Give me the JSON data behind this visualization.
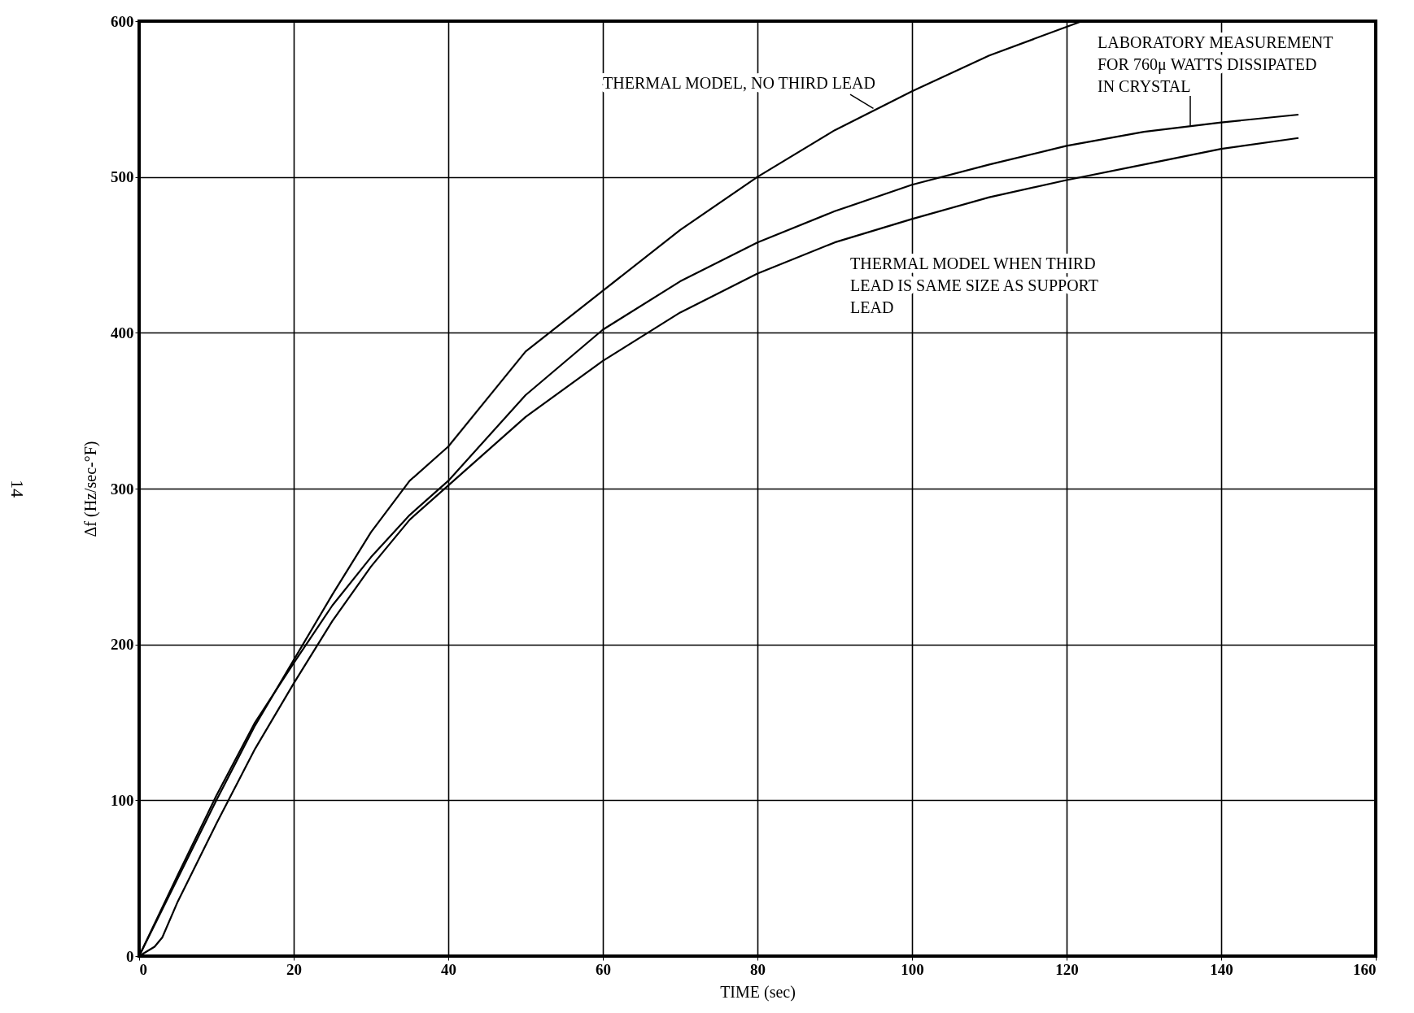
{
  "chart_data": {
    "type": "line",
    "xlabel": "TIME (sec)",
    "ylabel": "Δf (Hz/sec-°F)",
    "xlim": [
      0,
      160
    ],
    "xticks": [
      0,
      20,
      40,
      60,
      80,
      100,
      120,
      140,
      160
    ],
    "ylim": [
      0,
      600
    ],
    "yticks": [
      0,
      100,
      200,
      300,
      400,
      500,
      600
    ],
    "grid": true,
    "legend": false,
    "marker": "none",
    "line_style": "solid",
    "series": [
      {
        "name": "THERMAL MODEL, NO THIRD LEAD",
        "color": "#000000",
        "x": [
          0,
          5,
          10,
          15,
          20,
          25,
          30,
          35,
          40,
          50,
          60,
          70,
          80,
          90,
          100,
          110,
          122
        ],
        "values": [
          0,
          50,
          100,
          148,
          190,
          232,
          272,
          305,
          327,
          388,
          427,
          466,
          500,
          530,
          555,
          578,
          600
        ]
      },
      {
        "name": "LABORATORY MEASUREMENT\nFOR 760μ WATTS DISSIPATED\nIN CRYSTAL",
        "color": "#000000",
        "x": [
          0,
          5,
          10,
          15,
          20,
          25,
          30,
          35,
          40,
          50,
          60,
          70,
          80,
          90,
          100,
          110,
          120,
          130,
          140,
          150
        ],
        "values": [
          0,
          52,
          103,
          150,
          188,
          225,
          256,
          283,
          305,
          360,
          402,
          433,
          458,
          478,
          495,
          508,
          520,
          529,
          535,
          540
        ]
      },
      {
        "name": "THERMAL MODEL WHEN THIRD\nLEAD IS SAME SIZE AS SUPPORT\nLEAD",
        "color": "#000000",
        "x": [
          0,
          1,
          2,
          3,
          5,
          10,
          15,
          20,
          25,
          30,
          35,
          40,
          50,
          60,
          70,
          80,
          90,
          100,
          110,
          120,
          130,
          140,
          150
        ],
        "values": [
          0,
          3,
          6,
          12,
          35,
          85,
          133,
          175,
          215,
          250,
          280,
          302,
          346,
          382,
          413,
          438,
          458,
          473,
          487,
          498,
          508,
          518,
          525
        ]
      }
    ],
    "annotations": [
      "14"
    ]
  }
}
